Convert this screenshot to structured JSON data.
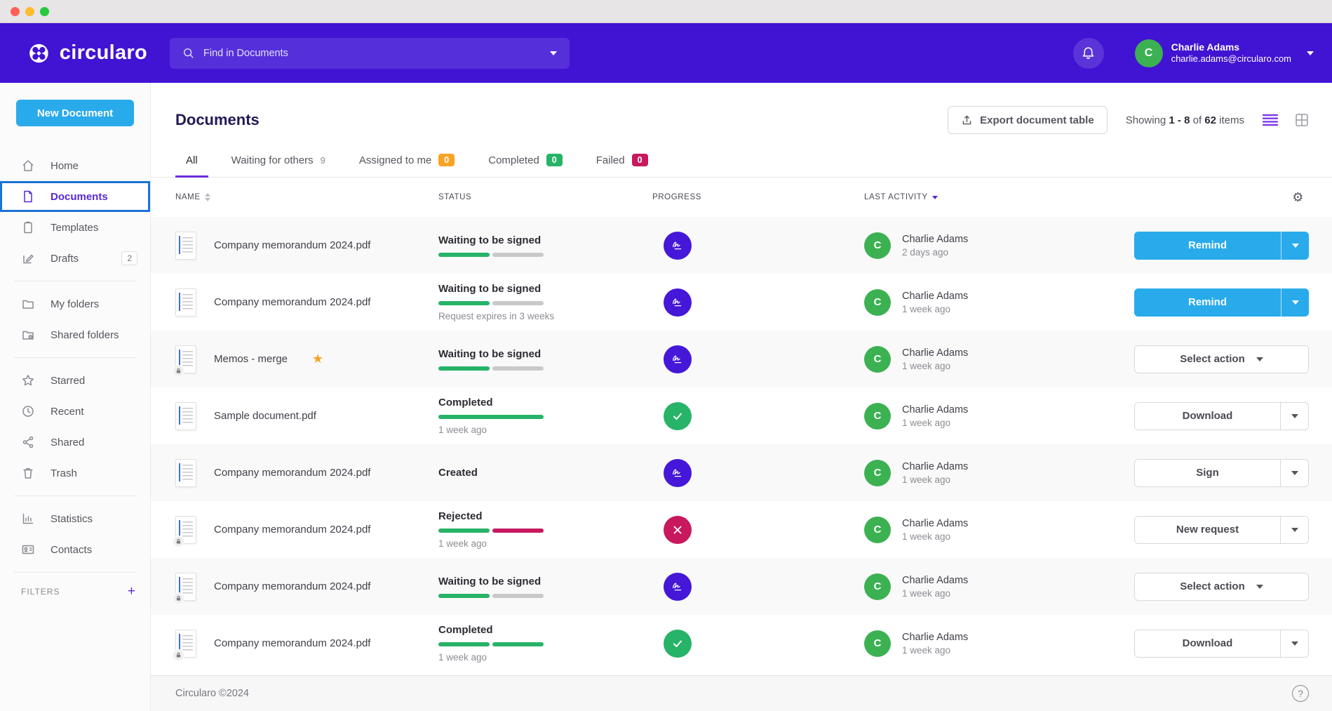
{
  "theme": {
    "header_purple": "#4113d3",
    "accent_blue": "#29abeb",
    "selected_border_blue": "#1b72d4",
    "green": "#27b368",
    "gray": "#c9c9c9",
    "red": "#c8185e",
    "purple_icon": "#4517d8",
    "badge_orange": "#f7a325",
    "avatar_green": "#3cb152"
  },
  "icons": {
    "gear": "⚙",
    "help": "?",
    "star": "★",
    "plus": "+"
  },
  "header": {
    "brand": "circularo",
    "search_placeholder": "Find in Documents",
    "user": {
      "name": "Charlie Adams",
      "email": "charlie.adams@circularo.com",
      "initial": "C"
    }
  },
  "sidebar": {
    "new_document": "New Document",
    "sections": [
      {
        "items": [
          {
            "label": "Home"
          },
          {
            "label": "Documents",
            "active": true
          },
          {
            "label": "Templates"
          },
          {
            "label": "Drafts",
            "badge": "2"
          }
        ]
      },
      {
        "items": [
          {
            "label": "My folders"
          },
          {
            "label": "Shared folders"
          }
        ]
      },
      {
        "items": [
          {
            "label": "Starred"
          },
          {
            "label": "Recent"
          },
          {
            "label": "Shared"
          },
          {
            "label": "Trash"
          }
        ]
      },
      {
        "items": [
          {
            "label": "Statistics"
          },
          {
            "label": "Contacts"
          }
        ]
      }
    ],
    "filters_label": "FILTERS"
  },
  "main": {
    "title": "Documents",
    "export_button": "Export document table",
    "showing": {
      "prefix": "Showing",
      "range": "1 - 8",
      "of": "of",
      "total": "62",
      "suffix": "items"
    },
    "tabs": [
      {
        "label": "All"
      },
      {
        "label": "Waiting for others",
        "count": "9"
      },
      {
        "label": "Assigned to me",
        "count": "0"
      },
      {
        "label": "Completed",
        "count": "0"
      },
      {
        "label": "Failed",
        "count": "0"
      }
    ],
    "columns": {
      "name": "NAME",
      "status": "STATUS",
      "progress": "PROGRESS",
      "activity": "LAST ACTIVITY"
    },
    "rows": [
      {
        "name": "Company memorandum 2024.pdf",
        "locked": false,
        "starred": false,
        "status": "Waiting to be signed",
        "sub": "",
        "bar": [
          [
            "green",
            1
          ],
          [
            "gray",
            1
          ]
        ],
        "icon": "signature",
        "user": "Charlie Adams",
        "time": "2 days ago",
        "action": {
          "label": "Remind",
          "type": "primary-split"
        }
      },
      {
        "name": "Company memorandum 2024.pdf",
        "locked": false,
        "starred": false,
        "status": "Waiting to be signed",
        "sub": "Request expires in 3 weeks",
        "bar": [
          [
            "green",
            1
          ],
          [
            "gray",
            1
          ]
        ],
        "icon": "signature",
        "user": "Charlie Adams",
        "time": "1 week ago",
        "action": {
          "label": "Remind",
          "type": "primary-split"
        }
      },
      {
        "name": "Memos - merge",
        "locked": true,
        "starred": true,
        "status": "Waiting to be signed",
        "sub": "",
        "bar": [
          [
            "green",
            1
          ],
          [
            "gray",
            1
          ]
        ],
        "icon": "signature",
        "user": "Charlie Adams",
        "time": "1 week ago",
        "action": {
          "label": "Select action",
          "type": "outline-select"
        }
      },
      {
        "name": "Sample document.pdf",
        "locked": false,
        "starred": false,
        "status": "Completed",
        "sub": "1 week ago",
        "bar": [
          [
            "green",
            2
          ]
        ],
        "icon": "check",
        "user": "Charlie Adams",
        "time": "1 week ago",
        "action": {
          "label": "Download",
          "type": "outline-split"
        }
      },
      {
        "name": "Company memorandum 2024.pdf",
        "locked": false,
        "starred": false,
        "status": "Created",
        "sub": "",
        "bar": [],
        "icon": "signature",
        "user": "Charlie Adams",
        "time": "1 week ago",
        "action": {
          "label": "Sign",
          "type": "outline-split"
        }
      },
      {
        "name": "Company memorandum 2024.pdf",
        "locked": true,
        "starred": false,
        "status": "Rejected",
        "sub": "1 week ago",
        "bar": [
          [
            "green",
            1
          ],
          [
            "red",
            1
          ]
        ],
        "icon": "cross",
        "user": "Charlie Adams",
        "time": "1 week ago",
        "action": {
          "label": "New request",
          "type": "outline-split"
        }
      },
      {
        "name": "Company memorandum 2024.pdf",
        "locked": true,
        "starred": false,
        "status": "Waiting to be signed",
        "sub": "",
        "bar": [
          [
            "green",
            1
          ],
          [
            "gray",
            1
          ]
        ],
        "icon": "signature",
        "user": "Charlie Adams",
        "time": "1 week ago",
        "action": {
          "label": "Select action",
          "type": "outline-select"
        }
      },
      {
        "name": "Company memorandum 2024.pdf",
        "locked": true,
        "starred": false,
        "status": "Completed",
        "sub": "1 week ago",
        "bar": [
          [
            "green",
            1
          ],
          [
            "green",
            1
          ]
        ],
        "icon": "check",
        "user": "Charlie Adams",
        "time": "1 week ago",
        "action": {
          "label": "Download",
          "type": "outline-split"
        }
      }
    ]
  },
  "footer": {
    "copyright": "Circularo ©2024"
  }
}
